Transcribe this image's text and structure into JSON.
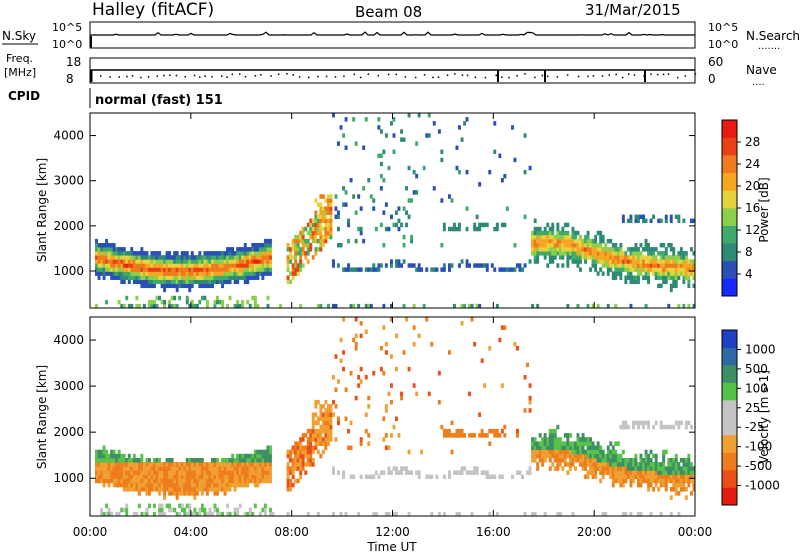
{
  "header": {
    "station": "Halley (fitACF)",
    "beam": "Beam 08",
    "date": "31/Mar/2015"
  },
  "top_panels": {
    "nsky": {
      "left_label": "N.Sky",
      "left_ticks": [
        "10^5",
        "10^0"
      ],
      "right_ticks": [
        "10^5",
        "10^0"
      ],
      "right_label": "N.Search",
      "right_dots": "......."
    },
    "freq": {
      "left_label_line1": "Freq.",
      "left_label_line2": "[MHz]",
      "left_ticks": [
        "18",
        "8"
      ],
      "right_ticks": [
        "60",
        "0"
      ],
      "right_label": "Nave",
      "right_dots": "...."
    },
    "cpid": {
      "label": "CPID",
      "value": "normal (fast) 151"
    }
  },
  "colors": {
    "power_scale": [
      "#1428ff",
      "#2a4fb8",
      "#2e8a76",
      "#3faa6a",
      "#8ccf4a",
      "#e6d23c",
      "#f6a623",
      "#f07a1e",
      "#ea4217",
      "#e81a12"
    ],
    "velocity_scale": [
      "#1f3fc4",
      "#2d6aa5",
      "#3f8f64",
      "#57c24a",
      "#c4c4c4",
      "#c4c4c4",
      "#f0a030",
      "#ee7d1d",
      "#eb4e16",
      "#e51a10"
    ]
  },
  "chart_data": [
    {
      "type": "heatmap",
      "name": "power",
      "xlabel": "",
      "ylabel": "Slant Range [km]",
      "xlim": [
        0,
        24
      ],
      "ylim": [
        180,
        4500
      ],
      "x_ticks": [
        "00:00",
        "04:00",
        "08:00",
        "12:00",
        "16:00",
        "20:00",
        "00:00"
      ],
      "y_ticks": [
        "1000",
        "2000",
        "3000",
        "4000"
      ],
      "colorbar": {
        "label": "Power [dB]",
        "range": [
          0,
          30
        ],
        "ticks": [
          "4",
          "8",
          "12",
          "16",
          "20",
          "24",
          "28"
        ]
      }
    },
    {
      "type": "heatmap",
      "name": "velocity",
      "xlabel": "Time UT",
      "ylabel": "Slant Range [km]",
      "xlim": [
        0,
        24
      ],
      "ylim": [
        180,
        4500
      ],
      "x_ticks": [
        "00:00",
        "04:00",
        "08:00",
        "12:00",
        "16:00",
        "20:00",
        "00:00"
      ],
      "y_ticks": [
        "1000",
        "2000",
        "3000",
        "4000"
      ],
      "colorbar": {
        "label": "Velocity [m s-1]",
        "ticks": [
          "1000",
          "500",
          "100",
          "25",
          "-25",
          "-100",
          "-500",
          "-1000"
        ]
      }
    }
  ]
}
